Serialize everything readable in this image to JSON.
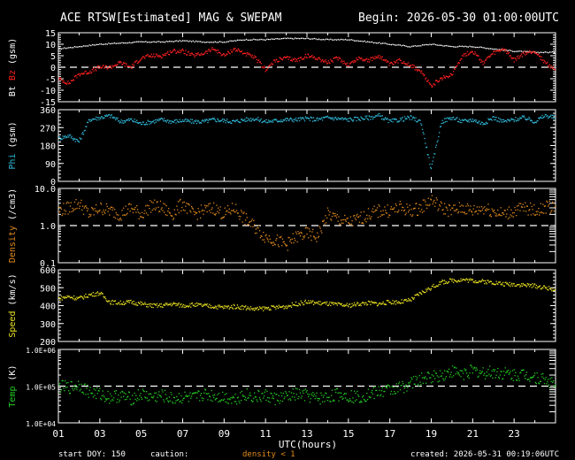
{
  "header": {
    "title": "ACE RTSW[Estimated] MAG & SWEPAM",
    "begin": "Begin: 2026-05-30 01:00:00UTC"
  },
  "footer": {
    "start_doy": "start DOY: 150",
    "caution": "caution:",
    "density_note": "density < 1",
    "created": "created: 2026-05-31 00:19:06UTC"
  },
  "colors": {
    "bt": "#ffffff",
    "bz": "#ff2020",
    "phi": "#2fb8d8",
    "density": "#e08a1c",
    "speed": "#e8e020",
    "temp": "#22cc22",
    "frame": "#ffffff",
    "background": "#000000"
  },
  "chart_data": {
    "type": "scatter",
    "xlabel": "UTC(hours)",
    "x_range": [
      0,
      24
    ],
    "x_tick_labels": [
      "01",
      "03",
      "05",
      "07",
      "09",
      "11",
      "13",
      "15",
      "17",
      "19",
      "21",
      "23"
    ],
    "panels": [
      {
        "id": "mag",
        "ylabel_parts": [
          {
            "text": "Bt",
            "color": "#ffffff"
          },
          {
            "text": "Bz",
            "color": "#ff2020"
          },
          {
            "text": "(gsm)",
            "color": "#ffffff"
          }
        ],
        "ylim": [
          -15,
          15
        ],
        "scale": "linear",
        "y_ticks": [
          -15,
          -10,
          -5,
          0,
          5,
          10,
          15
        ],
        "y_tick_labels": [
          "-15",
          "-10",
          "-5",
          "0",
          "5",
          "10",
          "15"
        ],
        "reference_line": 0,
        "series": [
          {
            "name": "Bt",
            "color": "#ffffff",
            "x": [
              0,
              1,
              2,
              3,
              4,
              5,
              6,
              7,
              8,
              9,
              10,
              11,
              12,
              13,
              14,
              15,
              16,
              17,
              18,
              19,
              20,
              21,
              22,
              23,
              24
            ],
            "y": [
              8,
              9,
              10,
              10.5,
              11,
              11,
              11.5,
              11,
              11,
              12,
              12,
              12.5,
              12.5,
              12,
              12,
              11,
              10,
              9,
              10,
              9,
              9,
              8,
              7,
              6.5,
              6.5
            ]
          },
          {
            "name": "Bz",
            "color": "#ff2020",
            "x": [
              0,
              0.5,
              1,
              1.5,
              2,
              2.5,
              3,
              3.5,
              4,
              4.5,
              5,
              5.5,
              6,
              6.5,
              7,
              7.5,
              8,
              8.5,
              9,
              9.5,
              10,
              10.5,
              11,
              11.5,
              12,
              12.5,
              13,
              13.5,
              14,
              14.5,
              15,
              15.5,
              16,
              16.5,
              17,
              17.5,
              18,
              18.5,
              19,
              19.5,
              20,
              20.5,
              21,
              21.5,
              22,
              22.5,
              23,
              23.5,
              24
            ],
            "y": [
              -5,
              -7,
              -3,
              -2,
              0,
              0,
              2,
              0,
              4,
              5,
              5,
              7,
              7,
              5,
              6,
              8,
              5,
              8,
              6,
              4,
              -1,
              3,
              4,
              3,
              5,
              4,
              2,
              4,
              1,
              4,
              3,
              5,
              1,
              3,
              1,
              -2,
              -8,
              -5,
              -3,
              5,
              7,
              2,
              6,
              8,
              3,
              6,
              7,
              2,
              -1
            ]
          }
        ]
      },
      {
        "id": "phi",
        "ylabel_parts": [
          {
            "text": "Phi",
            "color": "#2fb8d8"
          },
          {
            "text": "(gsm)",
            "color": "#ffffff"
          }
        ],
        "ylim": [
          0,
          360
        ],
        "scale": "linear",
        "y_ticks": [
          0,
          90,
          180,
          270,
          360
        ],
        "y_tick_labels": [
          "0",
          "90",
          "180",
          "270",
          "360"
        ],
        "series": [
          {
            "name": "Phi",
            "color": "#2fb8d8",
            "x": [
              0,
              0.5,
              1,
              1.5,
              2,
              2.5,
              3,
              3.5,
              4,
              4.5,
              5,
              5.5,
              6,
              6.5,
              7,
              7.5,
              8,
              8.5,
              9,
              9.5,
              10,
              10.5,
              11,
              11.5,
              12,
              12.5,
              13,
              13.5,
              14,
              14.5,
              15,
              15.5,
              16,
              16.5,
              17,
              17.5,
              18,
              18.5,
              19,
              19.5,
              20,
              20.5,
              21,
              21.5,
              22,
              22.5,
              23,
              23.5,
              24
            ],
            "y": [
              215,
              230,
              200,
              310,
              320,
              330,
              300,
              310,
              290,
              300,
              310,
              300,
              305,
              300,
              300,
              310,
              305,
              300,
              310,
              315,
              300,
              305,
              310,
              310,
              315,
              310,
              320,
              315,
              310,
              315,
              320,
              330,
              300,
              310,
              320,
              300,
              60,
              300,
              320,
              300,
              310,
              290,
              320,
              300,
              310,
              320,
              300,
              330,
              320
            ]
          }
        ]
      },
      {
        "id": "density",
        "ylabel_parts": [
          {
            "text": "Density",
            "color": "#e08a1c"
          },
          {
            "text": "(/cm3)",
            "color": "#ffffff"
          }
        ],
        "ylim": [
          0.1,
          10
        ],
        "scale": "log",
        "y_ticks": [
          0.1,
          1,
          10
        ],
        "y_tick_labels": [
          "0.1",
          "1.0",
          "10.0"
        ],
        "reference_line": 1,
        "series": [
          {
            "name": "Density",
            "color": "#e08a1c",
            "x": [
              0,
              0.5,
              1,
              1.5,
              2,
              2.5,
              3,
              3.5,
              4,
              4.5,
              5,
              5.5,
              6,
              6.5,
              7,
              7.5,
              8,
              8.5,
              9,
              9.5,
              10,
              10.5,
              11,
              11.5,
              12,
              12.5,
              13,
              13.5,
              14,
              14.5,
              15,
              15.5,
              16,
              16.5,
              17,
              17.5,
              18,
              18.5,
              19,
              19.5,
              20,
              20.5,
              21,
              21.5,
              22,
              22.5,
              23,
              23.5,
              24
            ],
            "y": [
              2.5,
              3,
              4,
              2,
              3,
              2.5,
              2,
              3,
              2,
              3.5,
              3,
              2,
              4,
              2,
              2.5,
              3,
              2,
              3,
              1.5,
              0.9,
              0.5,
              0.4,
              0.3,
              0.5,
              0.6,
              0.5,
              2,
              1.5,
              1.2,
              1.5,
              2,
              2.5,
              2.5,
              3,
              2.5,
              3,
              5,
              3,
              2.5,
              3,
              2.5,
              3,
              2.5,
              2,
              2.5,
              3,
              2.5,
              3,
              3.5
            ]
          }
        ]
      },
      {
        "id": "speed",
        "ylabel_parts": [
          {
            "text": "Speed",
            "color": "#e8e020"
          },
          {
            "text": "(km/s)",
            "color": "#ffffff"
          }
        ],
        "ylim": [
          200,
          600
        ],
        "scale": "linear",
        "y_ticks": [
          200,
          300,
          400,
          500,
          600
        ],
        "y_tick_labels": [
          "200",
          "300",
          "400",
          "500",
          "600"
        ],
        "series": [
          {
            "name": "Speed",
            "color": "#e8e020",
            "x": [
              0,
              0.5,
              1,
              1.5,
              2,
              2.5,
              3,
              3.5,
              4,
              4.5,
              5,
              5.5,
              6,
              6.5,
              7,
              7.5,
              8,
              8.5,
              9,
              9.5,
              10,
              10.5,
              11,
              11.5,
              12,
              12.5,
              13,
              13.5,
              14,
              14.5,
              15,
              15.5,
              16,
              16.5,
              17,
              17.5,
              18,
              18.5,
              19,
              19.5,
              20,
              20.5,
              21,
              21.5,
              22,
              22.5,
              23,
              23.5,
              24
            ],
            "y": [
              440,
              450,
              440,
              460,
              470,
              420,
              415,
              420,
              410,
              400,
              400,
              410,
              400,
              405,
              400,
              395,
              390,
              395,
              390,
              380,
              385,
              390,
              395,
              410,
              420,
              415,
              410,
              405,
              400,
              410,
              415,
              410,
              420,
              420,
              430,
              470,
              500,
              530,
              540,
              545,
              540,
              535,
              530,
              520,
              520,
              515,
              510,
              500,
              490
            ]
          }
        ]
      },
      {
        "id": "temp",
        "ylabel_parts": [
          {
            "text": "Temp",
            "color": "#22cc22"
          },
          {
            "text": "(K)",
            "color": "#ffffff"
          }
        ],
        "ylim": [
          10000,
          1000000
        ],
        "scale": "log",
        "y_ticks": [
          10000,
          100000,
          1000000
        ],
        "y_tick_labels": [
          "1.0E+04",
          "1.0E+05",
          "1.0E+06"
        ],
        "reference_line": 100000,
        "series": [
          {
            "name": "Temp",
            "color": "#22cc22",
            "x": [
              0,
              0.5,
              1,
              1.5,
              2,
              2.5,
              3,
              3.5,
              4,
              4.5,
              5,
              5.5,
              6,
              6.5,
              7,
              7.5,
              8,
              8.5,
              9,
              9.5,
              10,
              10.5,
              11,
              11.5,
              12,
              12.5,
              13,
              13.5,
              14,
              14.5,
              15,
              15.5,
              16,
              16.5,
              17,
              17.5,
              18,
              18.5,
              19,
              19.5,
              20,
              20.5,
              21,
              21.5,
              22,
              22.5,
              23,
              23.5,
              24
            ],
            "y": [
              100000,
              90000,
              110000,
              70000,
              60000,
              50000,
              55000,
              45000,
              60000,
              50000,
              55000,
              45000,
              50000,
              45000,
              60000,
              55000,
              50000,
              45000,
              60000,
              50000,
              55000,
              45000,
              50000,
              60000,
              55000,
              45000,
              50000,
              60000,
              55000,
              50000,
              60000,
              70000,
              80000,
              90000,
              120000,
              150000,
              180000,
              200000,
              250000,
              220000,
              260000,
              230000,
              240000,
              220000,
              200000,
              210000,
              180000,
              150000,
              110000
            ]
          }
        ]
      }
    ]
  }
}
